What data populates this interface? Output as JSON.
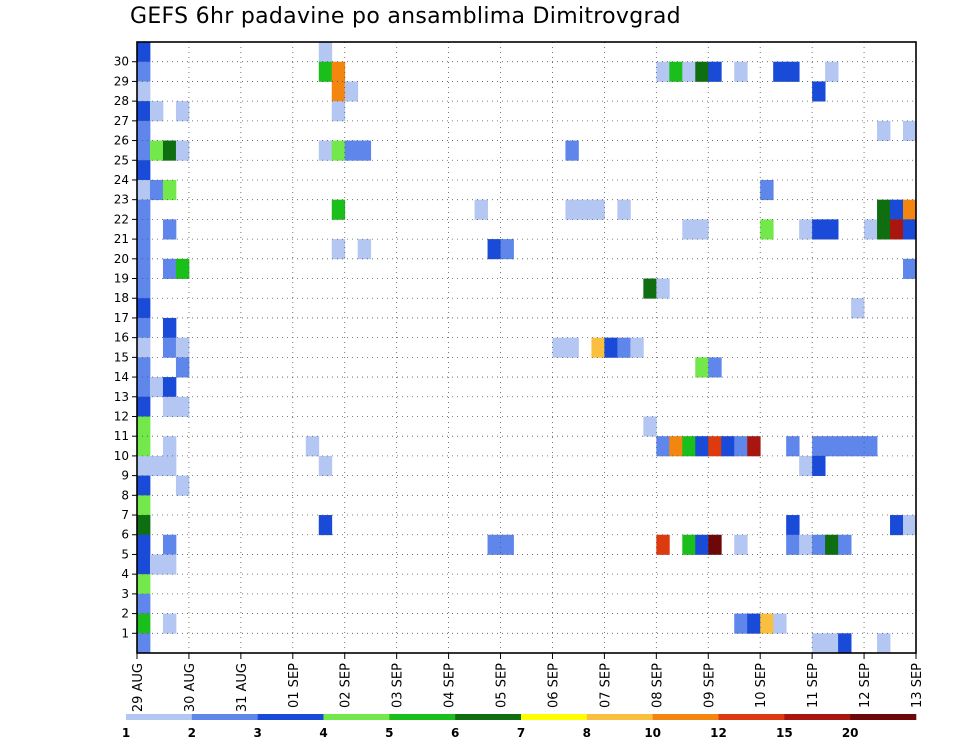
{
  "title": "GEFS 6hr padavine po ansamblima Dimitrovgrad",
  "chart_data": {
    "type": "heatmap",
    "title": "GEFS 6hr padavine po ansamblima Dimitrovgrad",
    "x_tick_labels": [
      "29 AUG",
      "30 AUG",
      "31 AUG",
      "01 SEP",
      "02 SEP",
      "03 SEP",
      "04 SEP",
      "05 SEP",
      "06 SEP",
      "07 SEP",
      "08 SEP",
      "09 SEP",
      "10 SEP",
      "11 SEP",
      "12 SEP",
      "13 SEP"
    ],
    "y_tick_labels": [
      "1",
      "2",
      "3",
      "4",
      "5",
      "6",
      "7",
      "8",
      "9",
      "10",
      "11",
      "12",
      "13",
      "14",
      "15",
      "16",
      "17",
      "18",
      "19",
      "20",
      "21",
      "22",
      "23",
      "24",
      "25",
      "26",
      "27",
      "28",
      "29",
      "30"
    ],
    "time_step_hours": 6,
    "grid": true,
    "colorbar": {
      "position": "bottom",
      "levels": [
        "1",
        "2",
        "3",
        "4",
        "5",
        "6",
        "7",
        "8",
        "10",
        "12",
        "15",
        "20"
      ],
      "colors": [
        "#b4c6f2",
        "#5f86ea",
        "#1a4ad8",
        "#73e84a",
        "#1bbf1b",
        "#0f6e0f",
        "#ffff00",
        "#fbbf40",
        "#f2860f",
        "#de3a10",
        "#a8160f",
        "#6e0808"
      ]
    },
    "cells": [
      {
        "m": 30,
        "t": 0,
        "v": 3
      },
      {
        "m": 30,
        "t": 14,
        "v": 1
      },
      {
        "m": 29,
        "t": 0,
        "v": 2
      },
      {
        "m": 29,
        "t": 14,
        "v": 5
      },
      {
        "m": 29,
        "t": 15,
        "v": 10
      },
      {
        "m": 29,
        "t": 40,
        "v": 1
      },
      {
        "m": 29,
        "t": 41,
        "v": 5
      },
      {
        "m": 29,
        "t": 42,
        "v": 1
      },
      {
        "m": 29,
        "t": 43,
        "v": 6
      },
      {
        "m": 29,
        "t": 44,
        "v": 3
      },
      {
        "m": 29,
        "t": 46,
        "v": 1
      },
      {
        "m": 29,
        "t": 49,
        "v": 3
      },
      {
        "m": 29,
        "t": 50,
        "v": 3
      },
      {
        "m": 29,
        "t": 53,
        "v": 1
      },
      {
        "m": 28,
        "t": 0,
        "v": 1
      },
      {
        "m": 28,
        "t": 15,
        "v": 10
      },
      {
        "m": 28,
        "t": 16,
        "v": 1
      },
      {
        "m": 28,
        "t": 52,
        "v": 3
      },
      {
        "m": 27,
        "t": 0,
        "v": 3
      },
      {
        "m": 27,
        "t": 1,
        "v": 1
      },
      {
        "m": 27,
        "t": 3,
        "v": 1
      },
      {
        "m": 27,
        "t": 15,
        "v": 1
      },
      {
        "m": 26,
        "t": 0,
        "v": 2
      },
      {
        "m": 26,
        "t": 57,
        "v": 1
      },
      {
        "m": 26,
        "t": 59,
        "v": 1
      },
      {
        "m": 25,
        "t": 0,
        "v": 2
      },
      {
        "m": 25,
        "t": 1,
        "v": 4
      },
      {
        "m": 25,
        "t": 2,
        "v": 6
      },
      {
        "m": 25,
        "t": 3,
        "v": 1
      },
      {
        "m": 25,
        "t": 14,
        "v": 1
      },
      {
        "m": 25,
        "t": 15,
        "v": 4
      },
      {
        "m": 25,
        "t": 16,
        "v": 2
      },
      {
        "m": 25,
        "t": 17,
        "v": 2
      },
      {
        "m": 25,
        "t": 33,
        "v": 2
      },
      {
        "m": 24,
        "t": 0,
        "v": 3
      },
      {
        "m": 23,
        "t": 0,
        "v": 1
      },
      {
        "m": 23,
        "t": 1,
        "v": 2
      },
      {
        "m": 23,
        "t": 2,
        "v": 4
      },
      {
        "m": 23,
        "t": 48,
        "v": 2
      },
      {
        "m": 22,
        "t": 0,
        "v": 2
      },
      {
        "m": 22,
        "t": 15,
        "v": 5
      },
      {
        "m": 22,
        "t": 26,
        "v": 1
      },
      {
        "m": 22,
        "t": 33,
        "v": 1
      },
      {
        "m": 22,
        "t": 34,
        "v": 1
      },
      {
        "m": 22,
        "t": 35,
        "v": 1
      },
      {
        "m": 22,
        "t": 37,
        "v": 1
      },
      {
        "m": 22,
        "t": 57,
        "v": 6
      },
      {
        "m": 22,
        "t": 58,
        "v": 3
      },
      {
        "m": 22,
        "t": 59,
        "v": 10
      },
      {
        "m": 21,
        "t": 0,
        "v": 2
      },
      {
        "m": 21,
        "t": 2,
        "v": 2
      },
      {
        "m": 21,
        "t": 42,
        "v": 1
      },
      {
        "m": 21,
        "t": 43,
        "v": 1
      },
      {
        "m": 21,
        "t": 48,
        "v": 4
      },
      {
        "m": 21,
        "t": 51,
        "v": 1
      },
      {
        "m": 21,
        "t": 52,
        "v": 3
      },
      {
        "m": 21,
        "t": 53,
        "v": 3
      },
      {
        "m": 21,
        "t": 56,
        "v": 1
      },
      {
        "m": 21,
        "t": 57,
        "v": 6
      },
      {
        "m": 21,
        "t": 58,
        "v": 15
      },
      {
        "m": 21,
        "t": 59,
        "v": 3
      },
      {
        "m": 20,
        "t": 0,
        "v": 2
      },
      {
        "m": 20,
        "t": 15,
        "v": 1
      },
      {
        "m": 20,
        "t": 17,
        "v": 1
      },
      {
        "m": 20,
        "t": 27,
        "v": 3
      },
      {
        "m": 20,
        "t": 28,
        "v": 2
      },
      {
        "m": 19,
        "t": 0,
        "v": 2
      },
      {
        "m": 19,
        "t": 2,
        "v": 2
      },
      {
        "m": 19,
        "t": 3,
        "v": 5
      },
      {
        "m": 19,
        "t": 59,
        "v": 2
      },
      {
        "m": 18,
        "t": 0,
        "v": 2
      },
      {
        "m": 18,
        "t": 39,
        "v": 6
      },
      {
        "m": 18,
        "t": 40,
        "v": 1
      },
      {
        "m": 17,
        "t": 0,
        "v": 3
      },
      {
        "m": 17,
        "t": 55,
        "v": 1
      },
      {
        "m": 16,
        "t": 0,
        "v": 2
      },
      {
        "m": 16,
        "t": 2,
        "v": 3
      },
      {
        "m": 15,
        "t": 0,
        "v": 1
      },
      {
        "m": 15,
        "t": 2,
        "v": 2
      },
      {
        "m": 15,
        "t": 3,
        "v": 1
      },
      {
        "m": 15,
        "t": 32,
        "v": 1
      },
      {
        "m": 15,
        "t": 33,
        "v": 1
      },
      {
        "m": 15,
        "t": 35,
        "v": 8
      },
      {
        "m": 15,
        "t": 36,
        "v": 3
      },
      {
        "m": 15,
        "t": 37,
        "v": 2
      },
      {
        "m": 15,
        "t": 38,
        "v": 1
      },
      {
        "m": 14,
        "t": 0,
        "v": 2
      },
      {
        "m": 14,
        "t": 3,
        "v": 2
      },
      {
        "m": 14,
        "t": 43,
        "v": 4
      },
      {
        "m": 14,
        "t": 44,
        "v": 2
      },
      {
        "m": 13,
        "t": 0,
        "v": 2
      },
      {
        "m": 13,
        "t": 1,
        "v": 1
      },
      {
        "m": 13,
        "t": 2,
        "v": 3
      },
      {
        "m": 12,
        "t": 0,
        "v": 3
      },
      {
        "m": 12,
        "t": 2,
        "v": 1
      },
      {
        "m": 12,
        "t": 3,
        "v": 1
      },
      {
        "m": 11,
        "t": 0,
        "v": 4
      },
      {
        "m": 11,
        "t": 39,
        "v": 1
      },
      {
        "m": 10,
        "t": 0,
        "v": 4
      },
      {
        "m": 10,
        "t": 2,
        "v": 1
      },
      {
        "m": 10,
        "t": 13,
        "v": 1
      },
      {
        "m": 10,
        "t": 40,
        "v": 2
      },
      {
        "m": 10,
        "t": 41,
        "v": 10
      },
      {
        "m": 10,
        "t": 42,
        "v": 5
      },
      {
        "m": 10,
        "t": 43,
        "v": 3
      },
      {
        "m": 10,
        "t": 44,
        "v": 12
      },
      {
        "m": 10,
        "t": 45,
        "v": 3
      },
      {
        "m": 10,
        "t": 46,
        "v": 2
      },
      {
        "m": 10,
        "t": 47,
        "v": 15
      },
      {
        "m": 10,
        "t": 50,
        "v": 2
      },
      {
        "m": 10,
        "t": 52,
        "v": 2
      },
      {
        "m": 10,
        "t": 53,
        "v": 2
      },
      {
        "m": 10,
        "t": 54,
        "v": 2
      },
      {
        "m": 10,
        "t": 55,
        "v": 2
      },
      {
        "m": 10,
        "t": 56,
        "v": 2
      },
      {
        "m": 9,
        "t": 0,
        "v": 1
      },
      {
        "m": 9,
        "t": 1,
        "v": 1
      },
      {
        "m": 9,
        "t": 2,
        "v": 1
      },
      {
        "m": 9,
        "t": 14,
        "v": 1
      },
      {
        "m": 9,
        "t": 51,
        "v": 1
      },
      {
        "m": 9,
        "t": 52,
        "v": 3
      },
      {
        "m": 8,
        "t": 0,
        "v": 3
      },
      {
        "m": 8,
        "t": 3,
        "v": 1
      },
      {
        "m": 7,
        "t": 0,
        "v": 4
      },
      {
        "m": 6,
        "t": 0,
        "v": 6
      },
      {
        "m": 6,
        "t": 14,
        "v": 3
      },
      {
        "m": 6,
        "t": 50,
        "v": 3
      },
      {
        "m": 6,
        "t": 58,
        "v": 3
      },
      {
        "m": 6,
        "t": 59,
        "v": 1
      },
      {
        "m": 5,
        "t": 0,
        "v": 3
      },
      {
        "m": 5,
        "t": 2,
        "v": 2
      },
      {
        "m": 5,
        "t": 27,
        "v": 2
      },
      {
        "m": 5,
        "t": 28,
        "v": 2
      },
      {
        "m": 5,
        "t": 40,
        "v": 12
      },
      {
        "m": 5,
        "t": 42,
        "v": 5
      },
      {
        "m": 5,
        "t": 43,
        "v": 3
      },
      {
        "m": 5,
        "t": 44,
        "v": 20
      },
      {
        "m": 5,
        "t": 46,
        "v": 1
      },
      {
        "m": 5,
        "t": 50,
        "v": 2
      },
      {
        "m": 5,
        "t": 51,
        "v": 1
      },
      {
        "m": 5,
        "t": 52,
        "v": 2
      },
      {
        "m": 5,
        "t": 53,
        "v": 6
      },
      {
        "m": 5,
        "t": 54,
        "v": 2
      },
      {
        "m": 4,
        "t": 0,
        "v": 3
      },
      {
        "m": 4,
        "t": 1,
        "v": 1
      },
      {
        "m": 4,
        "t": 2,
        "v": 1
      },
      {
        "m": 3,
        "t": 0,
        "v": 4
      },
      {
        "m": 2,
        "t": 0,
        "v": 2
      },
      {
        "m": 1,
        "t": 0,
        "v": 5
      },
      {
        "m": 1,
        "t": 2,
        "v": 1
      },
      {
        "m": 1,
        "t": 46,
        "v": 2
      },
      {
        "m": 1,
        "t": 47,
        "v": 3
      },
      {
        "m": 1,
        "t": 48,
        "v": 8
      },
      {
        "m": 1,
        "t": 49,
        "v": 1
      },
      {
        "m": 0,
        "t": 0,
        "v": 2
      },
      {
        "m": 0,
        "t": 52,
        "v": 1
      },
      {
        "m": 0,
        "t": 53,
        "v": 1
      },
      {
        "m": 0,
        "t": 54,
        "v": 3
      },
      {
        "m": 0,
        "t": 57,
        "v": 1
      }
    ]
  }
}
